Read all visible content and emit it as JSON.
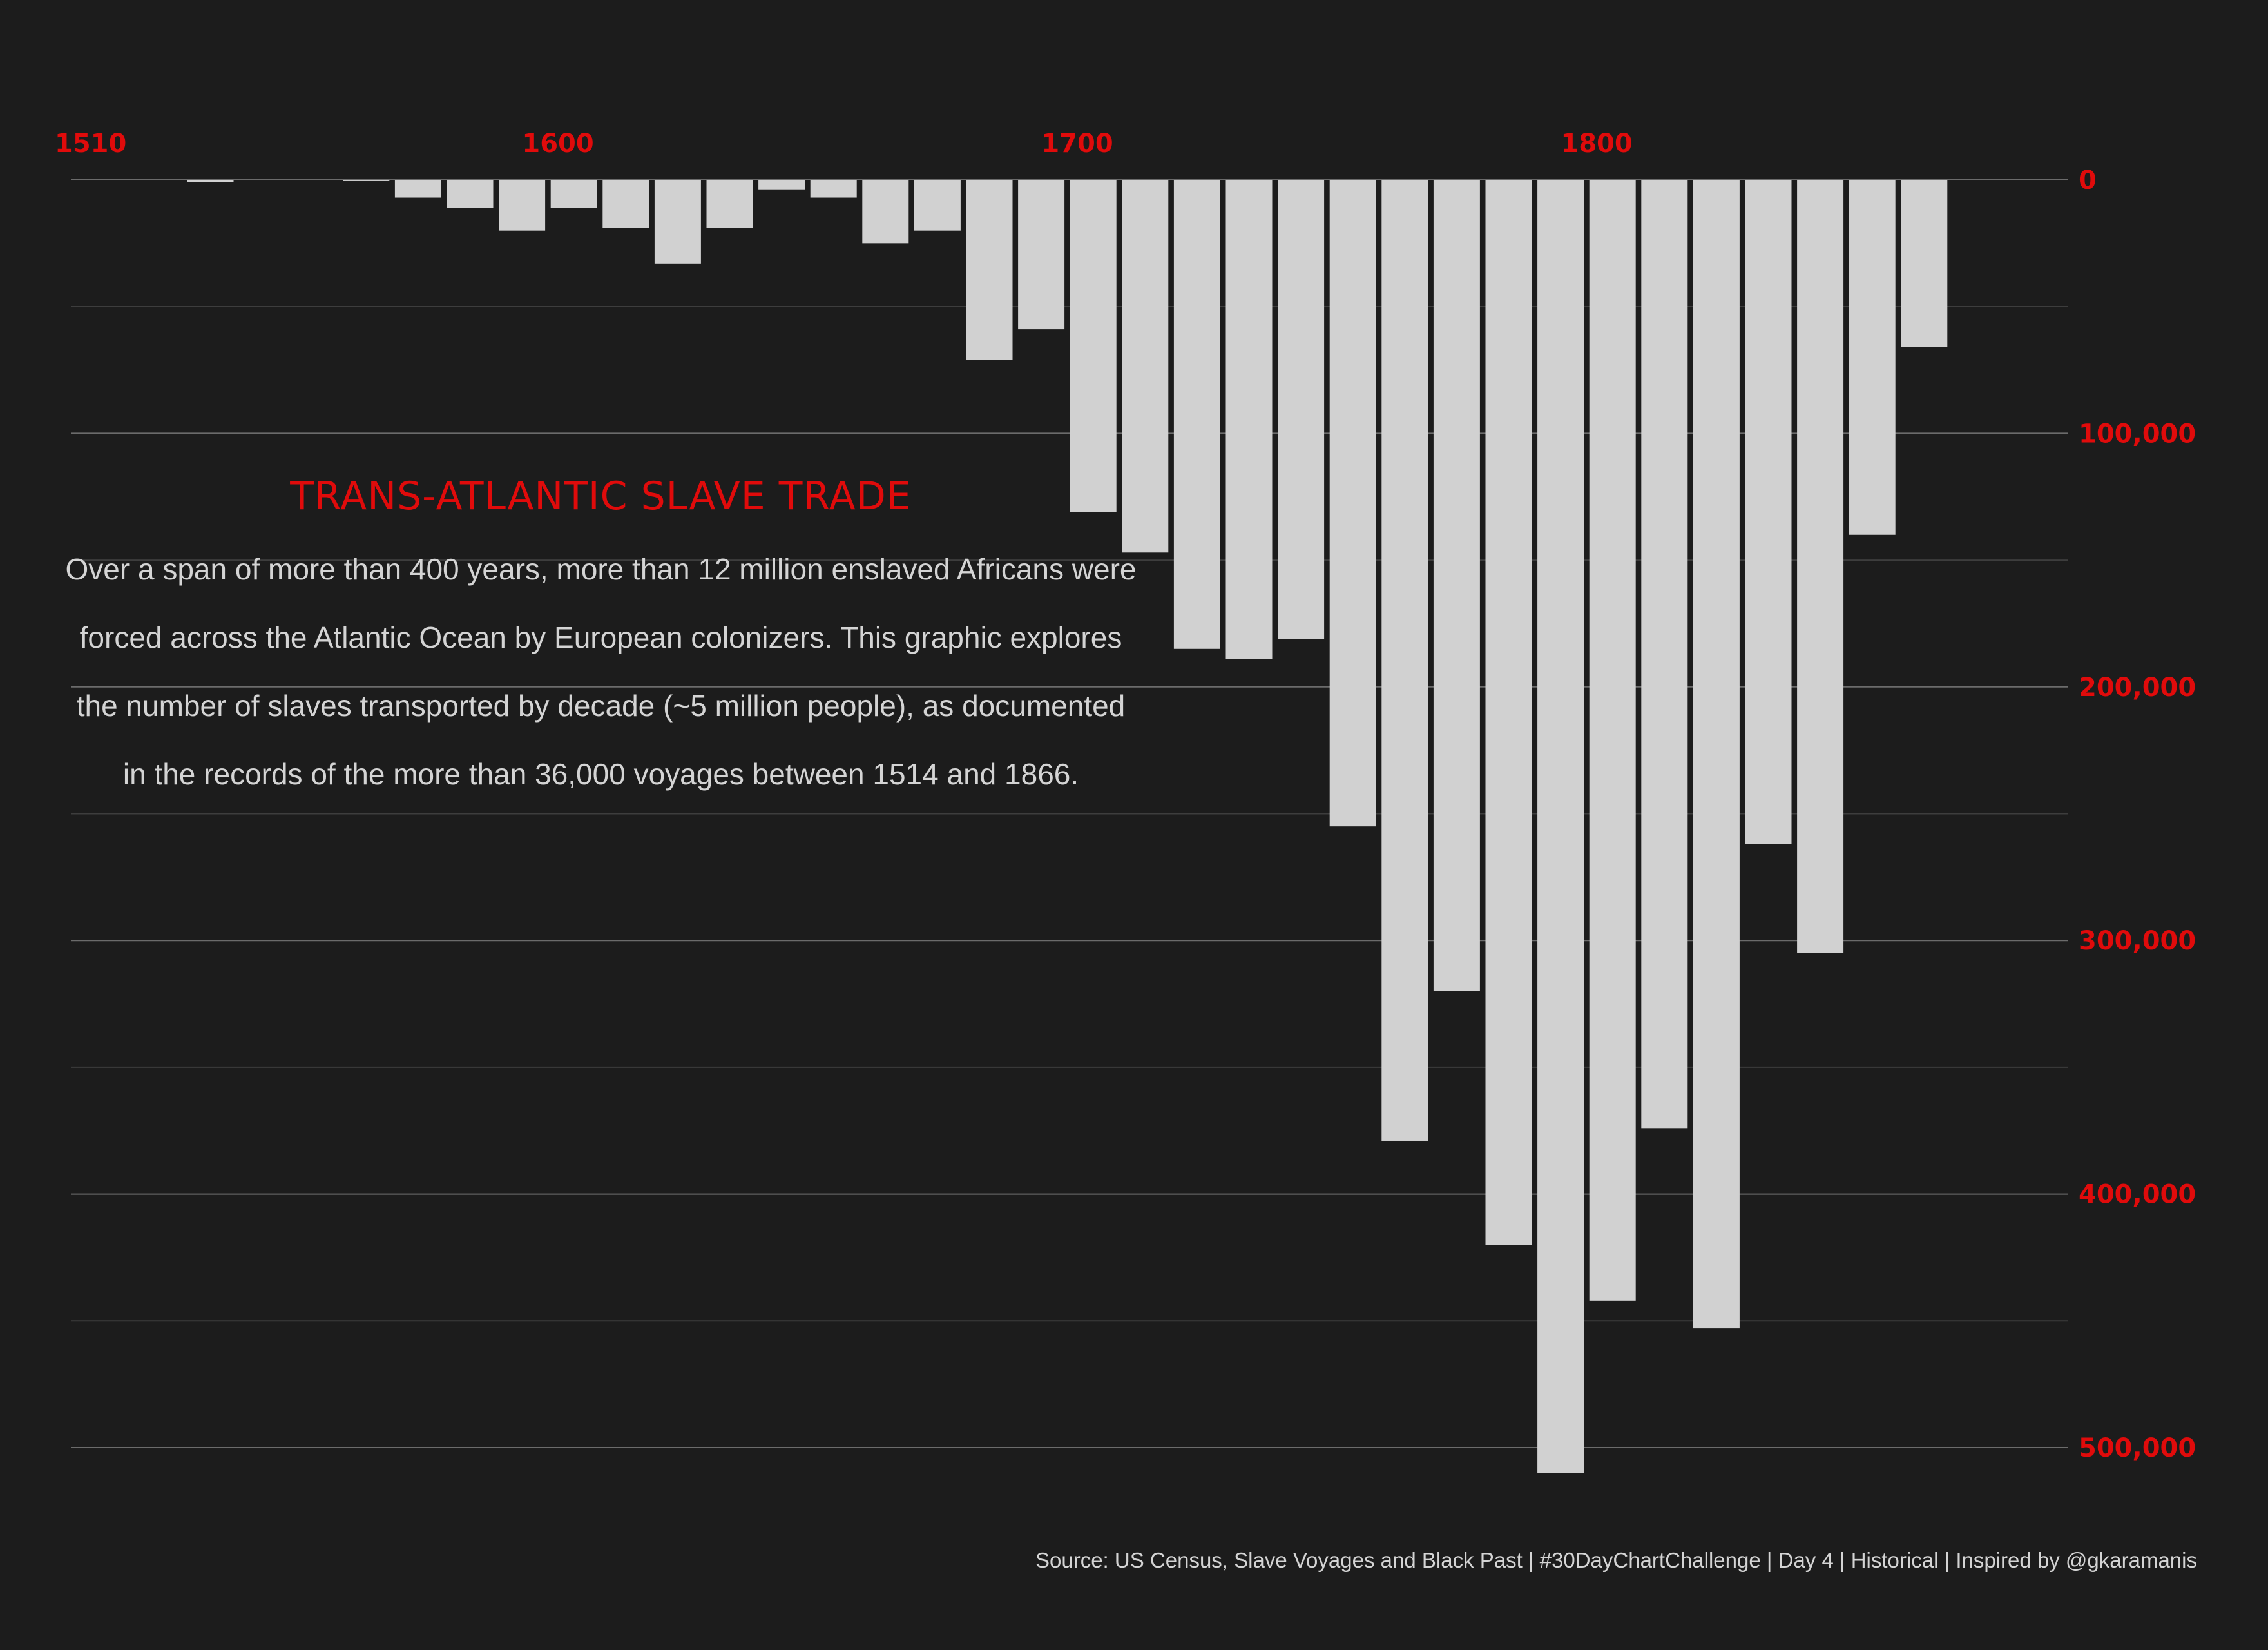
{
  "chart_data": {
    "type": "bar",
    "orientation": "downward",
    "title": "TRANS-ATLANTIC SLAVE TRADE",
    "subtitle": "Over a span of more than 400 years, more than 12 million enslaved Africans were forced across the Atlantic Ocean by European colonizers. This graphic explores the number of slaves transported by decade (~5 million people), as documented in the records of the more than 36,000 voyages between 1514 and 1866.",
    "caption": "Source: US Census, Slave Voyages and Black Past | #30DayChartChallenge | Day 4 | Historical | Inspired by @gkaramanis",
    "xlabel": "",
    "ylabel": "",
    "x_axis_position": "top",
    "y_axis_position": "right",
    "x_ticks": [
      "1510",
      "1600",
      "1700",
      "1800"
    ],
    "x_tick_values": [
      1510,
      1600,
      1700,
      1800
    ],
    "y_ticks": [
      "0",
      "100,000",
      "200,000",
      "300,000",
      "400,000",
      "500,000"
    ],
    "y_tick_values": [
      0,
      100000,
      200000,
      300000,
      400000,
      500000
    ],
    "xlim": [
      1500,
      1875
    ],
    "ylim": [
      0,
      510000
    ],
    "grid": true,
    "colors": {
      "background": "#1c1c1c",
      "bar": "#d1d1d1",
      "accent": "#e00b0b",
      "text": "#d4d4d4",
      "grid_major": "#6b6b6b",
      "grid_minor": "#3d3d3d"
    },
    "series": [
      {
        "x": [
          1510,
          1520,
          1530,
          1540,
          1550,
          1560,
          1570,
          1580,
          1590,
          1600,
          1610,
          1620,
          1630,
          1640,
          1650,
          1660,
          1670,
          1680,
          1690,
          1700,
          1710,
          1720,
          1730,
          1740,
          1750,
          1760,
          1770,
          1780,
          1790,
          1800,
          1810,
          1820,
          1830,
          1840,
          1850,
          1860
        ],
        "values": [
          0,
          0,
          1000,
          0,
          0,
          500,
          7000,
          11000,
          20000,
          11000,
          19000,
          33000,
          19000,
          4000,
          7000,
          25000,
          20000,
          71000,
          59000,
          131000,
          147000,
          185000,
          189000,
          181000,
          255000,
          379000,
          320000,
          420000,
          510000,
          442000,
          374000,
          453000,
          262000,
          305000,
          140000,
          66000
        ]
      }
    ]
  }
}
